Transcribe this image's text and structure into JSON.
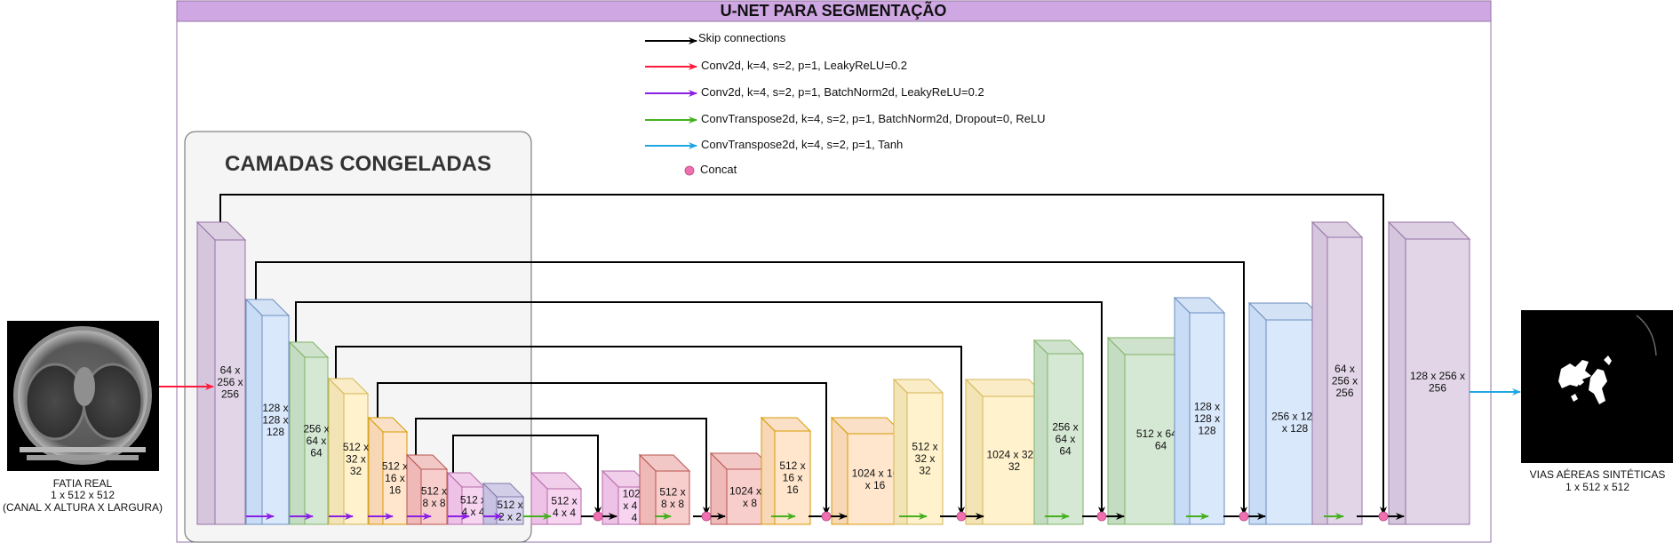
{
  "title": "U-NET PARA SEGMENTAÇÃO",
  "frozen_group_label": "CAMADAS CONGELADAS",
  "legend": [
    {
      "id": "skip",
      "label": "Skip connections",
      "color": "#000000"
    },
    {
      "id": "conv-leaky",
      "label": "Conv2d, k=4, s=2, p=1, LeakyReLU=0.2",
      "color": "#ff1a3c"
    },
    {
      "id": "conv-bn-leaky",
      "label": "Conv2d, k=4, s=2, p=1, BatchNorm2d, LeakyReLU=0.2",
      "color": "#8a1ee6"
    },
    {
      "id": "convt-bn-dropout-relu",
      "label": "ConvTranspose2d, k=4, s=2, p=1, BatchNorm2d, Dropout=0, ReLU",
      "color": "#44b01e"
    },
    {
      "id": "convt-tanh",
      "label": "ConvTranspose2d, k=4, s=2, p=1, Tanh",
      "color": "#1ea7e1"
    },
    {
      "id": "concat",
      "label": "Concat",
      "color": "#ef6fb0"
    }
  ],
  "input": {
    "caption": [
      "FATIA REAL",
      "1 x 512 x 512",
      "(CANAL X ALTURA X LARGURA)"
    ]
  },
  "output": {
    "caption": [
      "VIAS AÉREAS SINTÉTICAS",
      "1 x 512 x 512"
    ]
  },
  "encoder_blocks": [
    {
      "label": [
        "64 x",
        "256 x",
        "256"
      ],
      "color": "purple"
    },
    {
      "label": [
        "128 x",
        "128 x",
        "128"
      ],
      "color": "blue"
    },
    {
      "label": [
        "256 x",
        "64 x",
        "64"
      ],
      "color": "green"
    },
    {
      "label": [
        "512 x",
        "32 x",
        "32"
      ],
      "color": "yellow"
    },
    {
      "label": [
        "512 x",
        "16 x",
        "16"
      ],
      "color": "orange"
    },
    {
      "label": [
        "512 x",
        "8 x 8"
      ],
      "color": "red"
    },
    {
      "label": [
        "512 x",
        "4 x 4"
      ],
      "color": "pink"
    },
    {
      "label": [
        "512 x",
        "2 x 2"
      ],
      "color": "lavender"
    }
  ],
  "decoder_blocks": [
    {
      "label": [
        "512 x",
        "4 x 4"
      ],
      "color": "pink"
    },
    {
      "label": [
        "1024",
        "x 4 x",
        "4"
      ],
      "color": "pink"
    },
    {
      "label": [
        "512 x",
        "8 x 8"
      ],
      "color": "red"
    },
    {
      "label": [
        "1024 x 8",
        "x 8"
      ],
      "color": "red"
    },
    {
      "label": [
        "512 x",
        "16 x",
        "16"
      ],
      "color": "orange"
    },
    {
      "label": [
        "1024 x 16",
        "x 16"
      ],
      "color": "orange"
    },
    {
      "label": [
        "512 x",
        "32 x",
        "32"
      ],
      "color": "yellow"
    },
    {
      "label": [
        "1024 x 32 x",
        "32"
      ],
      "color": "yellow"
    },
    {
      "label": [
        "256 x",
        "64 x",
        "64"
      ],
      "color": "green"
    },
    {
      "label": [
        "512 x 64 x",
        "64"
      ],
      "color": "green"
    },
    {
      "label": [
        "128 x",
        "128 x",
        "128"
      ],
      "color": "blue"
    },
    {
      "label": [
        "256 x 128",
        "x 128"
      ],
      "color": "blue"
    },
    {
      "label": [
        "64 x",
        "256 x",
        "256"
      ],
      "color": "purple"
    },
    {
      "label": [
        "128 x 256 x",
        "256"
      ],
      "color": "purple"
    }
  ],
  "palette": {
    "purple": {
      "fill": "#e1d5e7",
      "side": "#d5c5dd",
      "stroke": "#9673a6"
    },
    "blue": {
      "fill": "#dae8fc",
      "side": "#c9dcf5",
      "stroke": "#6c8ebf"
    },
    "green": {
      "fill": "#d5e8d4",
      "side": "#c3dcc2",
      "stroke": "#82b366"
    },
    "yellow": {
      "fill": "#fff2cc",
      "side": "#f3e4b5",
      "stroke": "#d6b656"
    },
    "orange": {
      "fill": "#ffe6cc",
      "side": "#f7d7b5",
      "stroke": "#d79b00"
    },
    "red": {
      "fill": "#f8cecc",
      "side": "#efb9b7",
      "stroke": "#b85450"
    },
    "pink": {
      "fill": "#f7d4f0",
      "side": "#eec1e6",
      "stroke": "#b46ba8"
    },
    "lavender": {
      "fill": "#d9d4ee",
      "side": "#c7c1e2",
      "stroke": "#8078a8"
    }
  },
  "colors": {
    "title_bar": "#cfa8e3",
    "frame": "#9673a6",
    "frozen_fill": "#f5f5f5",
    "frozen_stroke": "#666666"
  }
}
